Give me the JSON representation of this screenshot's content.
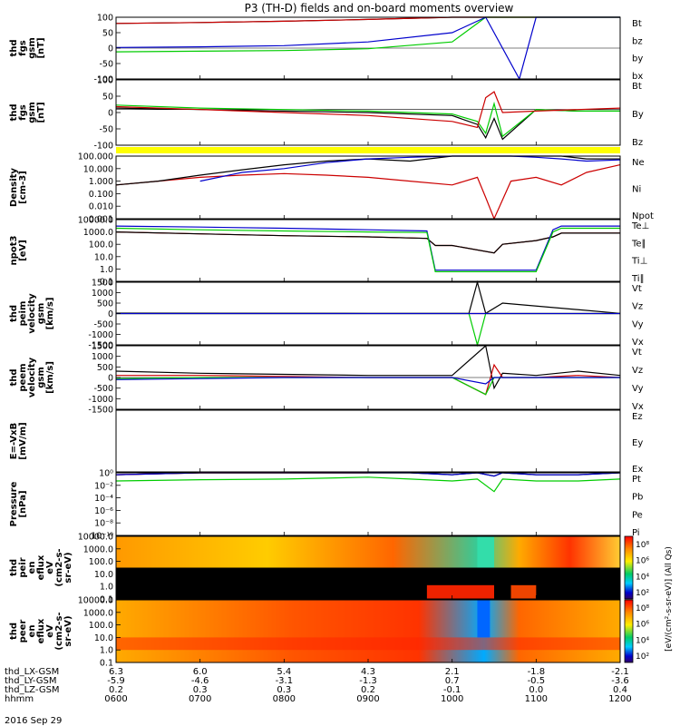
{
  "title": "P3 (TH-D) fields and on-board moments overview",
  "date_label": "2016 Sep 29",
  "colors": {
    "black": "#000000",
    "red": "#cc0000",
    "green": "#00cc00",
    "blue": "#0000cc",
    "flag": "#ffff00"
  },
  "chart_data": [
    {
      "type": "line",
      "panel": "fgs_gsm",
      "ylabel_lines": [
        "thd",
        "fgs",
        "gsm",
        "[nT]"
      ],
      "yticks": [
        "100",
        "50",
        "0",
        "-50",
        "-100"
      ],
      "ylim": [
        -100,
        100
      ],
      "series": [
        {
          "name": "Bt",
          "color": "#000000"
        },
        {
          "name": "bz",
          "color": "#cc0000"
        },
        {
          "name": "by",
          "color": "#00cc00"
        },
        {
          "name": "bx",
          "color": "#0000cc"
        }
      ],
      "x_hours": [
        6,
        7,
        8,
        9,
        10,
        10.4,
        10.8,
        11,
        11.5,
        12
      ],
      "values": {
        "Bt": [
          80,
          83,
          87,
          93,
          100,
          100,
          100,
          100,
          100,
          100
        ],
        "bz": [
          80,
          83,
          87,
          93,
          100,
          100,
          100,
          100,
          100,
          100
        ],
        "by": [
          -12,
          -10,
          -8,
          -2,
          20,
          100,
          100,
          100,
          100,
          100
        ],
        "bx": [
          2,
          4,
          8,
          20,
          50,
          100,
          -100,
          100,
          100,
          100
        ]
      }
    },
    {
      "type": "line",
      "panel": "fgs_gsm_zoom",
      "ylabel_lines": [
        "thd",
        "fgs",
        "gsm",
        "[nT]"
      ],
      "yticks": [
        "100",
        "50",
        "0",
        "-50",
        "-100"
      ],
      "ylim": [
        -120,
        100
      ],
      "series": [
        {
          "name": "Bt",
          "color": "#000000"
        },
        {
          "name": "By",
          "color": "#00cc00"
        },
        {
          "name": "Bz",
          "color": "#cc0000"
        }
      ],
      "x_hours": [
        6,
        7,
        8,
        9,
        10,
        10.3,
        10.4,
        10.5,
        10.6,
        11,
        11.5,
        12
      ],
      "values": {
        "Bt": [
          5,
          0,
          -5,
          -10,
          -20,
          -50,
          -95,
          -30,
          -100,
          0,
          -5,
          -5
        ],
        "By": [
          15,
          5,
          0,
          -5,
          -15,
          -40,
          -80,
          20,
          -90,
          0,
          -5,
          -5
        ],
        "Bz": [
          10,
          0,
          -10,
          -20,
          -40,
          -60,
          40,
          60,
          -10,
          -5,
          0,
          5
        ]
      }
    },
    {
      "type": "line",
      "panel": "density",
      "ylabel_lines": [
        "Density",
        "[cm-3]"
      ],
      "yticks": [
        "100.000",
        "10.000",
        "1.000",
        "0.100",
        "0.010",
        "0.001"
      ],
      "yscale": "log",
      "series": [
        {
          "name": "Ne",
          "color": "#cc0000"
        },
        {
          "name": "Ni",
          "color": "#000000"
        },
        {
          "name": "Npot",
          "color": "#0000cc"
        }
      ],
      "x_hours": [
        6,
        6.5,
        7,
        7.5,
        8,
        8.5,
        9,
        9.5,
        10,
        10.3,
        10.4,
        10.5,
        10.7,
        11,
        11.3,
        11.6,
        12
      ],
      "values": {
        "Ne": [
          0.5,
          1.0,
          2.0,
          3.0,
          4.0,
          3.0,
          2.0,
          1.0,
          0.5,
          2.0,
          0.05,
          0.001,
          1.0,
          2.0,
          0.5,
          5.0,
          20.0
        ],
        "Ni": [
          0.5,
          1.0,
          3.0,
          8.0,
          20.0,
          40.0,
          60.0,
          40.0,
          100.0,
          150.0,
          200.0,
          100.0,
          100.0,
          100.0,
          100.0,
          60.0,
          60.0
        ],
        "Npot": [
          null,
          null,
          1.0,
          5.0,
          10.0,
          30.0,
          60.0,
          80.0,
          100.0,
          100.0,
          100.0,
          100.0,
          100.0,
          80.0,
          60.0,
          40.0,
          50.0
        ]
      }
    },
    {
      "type": "line",
      "panel": "temperature",
      "ylabel_lines": [
        "npot3",
        "[eV]"
      ],
      "yticks": [
        "10000.0",
        "1000.0",
        "100.0",
        "10.0",
        "1.0",
        "0.1"
      ],
      "yscale": "log",
      "series": [
        {
          "name": "Te⊥",
          "color": "#cc0000"
        },
        {
          "name": "Te∥",
          "color": "#000000"
        },
        {
          "name": "Ti⊥",
          "color": "#0000cc"
        },
        {
          "name": "Ti∥",
          "color": "#00cc00"
        }
      ],
      "x_hours": [
        6,
        7,
        8,
        9,
        9.7,
        9.8,
        10,
        10.5,
        10.6,
        11,
        11.2,
        11.3,
        12
      ],
      "values": {
        "Te⊥": [
          1000,
          700,
          500,
          400,
          300,
          80,
          80,
          20,
          100,
          200,
          400,
          800,
          800
        ],
        "Te∥": [
          1000,
          700,
          500,
          400,
          300,
          80,
          80,
          20,
          100,
          200,
          400,
          800,
          800
        ],
        "Ti⊥": [
          3000,
          2500,
          2000,
          1500,
          1200,
          0.8,
          0.8,
          0.8,
          0.8,
          0.8,
          1500,
          3000,
          3000
        ],
        "Ti∥": [
          2000,
          1500,
          1200,
          1000,
          900,
          0.6,
          0.6,
          0.6,
          0.6,
          0.6,
          1000,
          2000,
          2000
        ]
      }
    },
    {
      "type": "line",
      "panel": "peim_velocity",
      "ylabel_lines": [
        "thd",
        "peim",
        "velocity",
        "gsm",
        "[km/s]"
      ],
      "yticks": [
        "1500",
        "1000",
        "500",
        "0",
        "-500",
        "-1000",
        "-1500"
      ],
      "ylim": [
        -1500,
        1500
      ],
      "series": [
        {
          "name": "Vt",
          "color": "#000000"
        },
        {
          "name": "Vz",
          "color": "#cc0000"
        },
        {
          "name": "Vy",
          "color": "#00cc00"
        },
        {
          "name": "Vx",
          "color": "#0000cc"
        }
      ],
      "x_hours": [
        6,
        9,
        10.2,
        10.3,
        10.4,
        10.6,
        12
      ],
      "values": {
        "Vt": [
          20,
          10,
          10,
          1500,
          10,
          500,
          10
        ],
        "Vz": [
          0,
          0,
          0,
          0,
          0,
          0,
          0
        ],
        "Vy": [
          0,
          0,
          0,
          -1500,
          0,
          0,
          0
        ],
        "Vx": [
          0,
          0,
          0,
          0,
          0,
          0,
          0
        ]
      }
    },
    {
      "type": "line",
      "panel": "peem_velocity",
      "ylabel_lines": [
        "thd",
        "peem",
        "velocity",
        "gsm",
        "[km/s]"
      ],
      "yticks": [
        "1500",
        "1000",
        "500",
        "0",
        "-500",
        "-1000",
        "-1500"
      ],
      "ylim": [
        -1500,
        1500
      ],
      "series": [
        {
          "name": "Vt",
          "color": "#000000"
        },
        {
          "name": "Vz",
          "color": "#cc0000"
        },
        {
          "name": "Vy",
          "color": "#00cc00"
        },
        {
          "name": "Vx",
          "color": "#0000cc"
        }
      ],
      "x_hours": [
        6,
        7,
        8,
        9,
        10,
        10.4,
        10.5,
        10.6,
        11,
        11.5,
        12
      ],
      "values": {
        "Vt": [
          300,
          200,
          150,
          100,
          100,
          1500,
          -500,
          200,
          100,
          300,
          100
        ],
        "Vz": [
          100,
          100,
          50,
          0,
          0,
          -800,
          600,
          0,
          0,
          100,
          0
        ],
        "Vy": [
          -50,
          0,
          0,
          0,
          0,
          -800,
          0,
          0,
          0,
          0,
          0
        ],
        "Vx": [
          -100,
          -50,
          0,
          0,
          0,
          -300,
          0,
          0,
          0,
          0,
          0
        ]
      }
    },
    {
      "type": "line",
      "panel": "vxb",
      "ylabel_lines": [
        "E=-VxB",
        "[mV/m]"
      ],
      "yticks": [],
      "series": [
        {
          "name": "Ez",
          "color": "#cc0000"
        },
        {
          "name": "Ey",
          "color": "#00cc00"
        },
        {
          "name": "Ex",
          "color": "#0000cc"
        }
      ],
      "values": {}
    },
    {
      "type": "line",
      "panel": "pressure",
      "ylabel_lines": [
        "Pressure",
        "[nPa]"
      ],
      "yticks": [
        "10⁰",
        "10⁻²",
        "10⁻⁴",
        "10⁻⁶",
        "10⁻⁸",
        "10⁻¹⁰"
      ],
      "yscale": "log",
      "series": [
        {
          "name": "Pt",
          "color": "#000000"
        },
        {
          "name": "Pb",
          "color": "#cc0000"
        },
        {
          "name": "Pe",
          "color": "#00cc00"
        },
        {
          "name": "Pi",
          "color": "#0000cc"
        }
      ],
      "x_hours": [
        6,
        7,
        8,
        9,
        9.5,
        10,
        10.3,
        10.5,
        10.6,
        11,
        11.5,
        12
      ],
      "values": {
        "Pt": [
          0.5,
          1.0,
          2.0,
          5.0,
          2.0,
          0.5,
          2.0,
          0.3,
          2.0,
          0.5,
          0.5,
          1.0
        ],
        "Pb": [
          0.5,
          1.0,
          2.0,
          5.0,
          null,
          null,
          null,
          null,
          null,
          null,
          null,
          null
        ],
        "Pe": [
          0.05,
          0.08,
          0.1,
          0.2,
          0.1,
          0.05,
          0.1,
          0.001,
          0.1,
          0.05,
          0.05,
          0.1
        ],
        "Pi": [
          0.5,
          1.0,
          2.0,
          5.0,
          2.0,
          0.5,
          2.0,
          0.3,
          2.0,
          0.5,
          0.5,
          1.0
        ]
      }
    },
    {
      "type": "heatmap",
      "panel": "peir_en_eflux",
      "ylabel_lines": [
        "thd",
        "peir",
        "en",
        "eflux",
        "eV",
        "(cm2-s-",
        "sr-eV)"
      ],
      "yticks": [
        "10000.0",
        "1000.0",
        "100.0",
        "10.0",
        "1.0",
        "0.1"
      ],
      "yscale": "log",
      "colorbar": [
        "10⁸",
        "10⁶",
        "10⁴",
        "10²"
      ]
    },
    {
      "type": "heatmap",
      "panel": "peer_en_eflux",
      "ylabel_lines": [
        "thd",
        "peer",
        "en",
        "eflux",
        "eV",
        "(cm2-s-",
        "sr-eV)"
      ],
      "yticks": [
        "10000.0",
        "1000.0",
        "100.0",
        "10.0",
        "1.0",
        "0.1"
      ],
      "yscale": "log",
      "colorbar": [
        "10⁸",
        "10⁶",
        "10⁴",
        "10²"
      ]
    }
  ],
  "colorbar_title": "[eV/(cm²-s-sr-eV)] (All Qs)",
  "orbit": {
    "row_labels": [
      "thd_LX-GSM",
      "thd_LY-GSM",
      "thd_LZ-GSM",
      "hhmm"
    ],
    "rows": [
      [
        "6.3",
        "6.0",
        "5.4",
        "4.3",
        "2.1",
        "-1.8",
        "-2.1"
      ],
      [
        "-5.9",
        "-4.6",
        "-3.1",
        "-1.3",
        "0.7",
        "-0.5",
        "-3.6"
      ],
      [
        "0.2",
        "0.3",
        "0.3",
        "0.2",
        "-0.1",
        "0.0",
        "0.4"
      ],
      [
        "0600",
        "0700",
        "0800",
        "0900",
        "1000",
        "1100",
        "1200"
      ]
    ]
  }
}
